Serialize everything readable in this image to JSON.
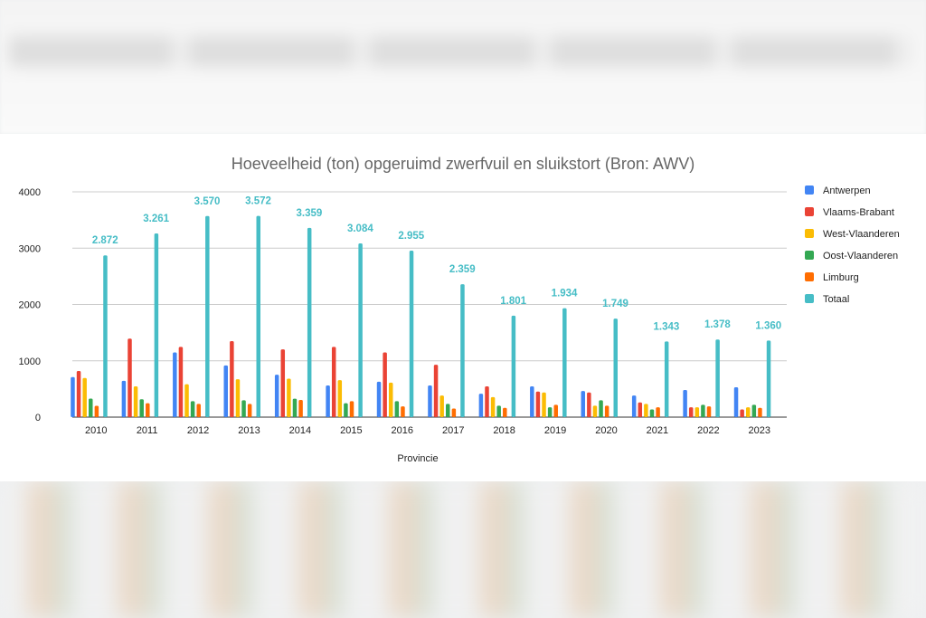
{
  "chart_data": {
    "type": "bar",
    "title": "Hoeveelheid (ton) opgeruimd zwerfvuil en sluikstort (Bron: AWV)",
    "xlabel": "Provincie",
    "ylabel": "",
    "ylim": [
      0,
      4000
    ],
    "yticks": [
      "0",
      "1000",
      "2000",
      "3000",
      "4000"
    ],
    "grid": true,
    "legend": "right",
    "categories": [
      "2010",
      "2011",
      "2012",
      "2013",
      "2014",
      "2015",
      "2016",
      "2017",
      "2018",
      "2019",
      "2020",
      "2021",
      "2022",
      "2023"
    ],
    "series": [
      {
        "name": "Antwerpen",
        "color": "#4285f4",
        "values": [
          710,
          645,
          1148,
          918,
          754,
          563,
          628,
          563,
          415,
          546,
          464,
          383,
          481,
          530
        ]
      },
      {
        "name": "Vlaams-Brabant",
        "color": "#ea4335",
        "values": [
          820,
          1393,
          1246,
          1350,
          1202,
          1246,
          1148,
          929,
          546,
          454,
          437,
          262,
          175,
          137
        ]
      },
      {
        "name": "West-Vlaanderen",
        "color": "#fbbc04",
        "values": [
          694,
          546,
          585,
          672,
          683,
          656,
          612,
          383,
          355,
          437,
          202,
          235,
          175,
          175
        ]
      },
      {
        "name": "Oost-Vlaanderen",
        "color": "#34a853",
        "values": [
          330,
          317,
          284,
          300,
          328,
          246,
          284,
          235,
          202,
          175,
          300,
          137,
          219,
          219
        ]
      },
      {
        "name": "Limburg",
        "color": "#ff6d01",
        "values": [
          200,
          246,
          235,
          235,
          306,
          284,
          191,
          153,
          164,
          219,
          202,
          175,
          191,
          164
        ]
      },
      {
        "name": "Totaal",
        "color": "#46bdc6",
        "values": [
          2872,
          3261,
          3570,
          3572,
          3359,
          3084,
          2955,
          2359,
          1801,
          1934,
          1749,
          1343,
          1378,
          1360
        ]
      }
    ],
    "total_labels": [
      "2.872",
      "3.261",
      "3.570",
      "3.572",
      "3.359",
      "3.084",
      "2.955",
      "2.359",
      "1.801",
      "1.934",
      "1.749",
      "1.343",
      "1.378",
      "1.360"
    ]
  }
}
